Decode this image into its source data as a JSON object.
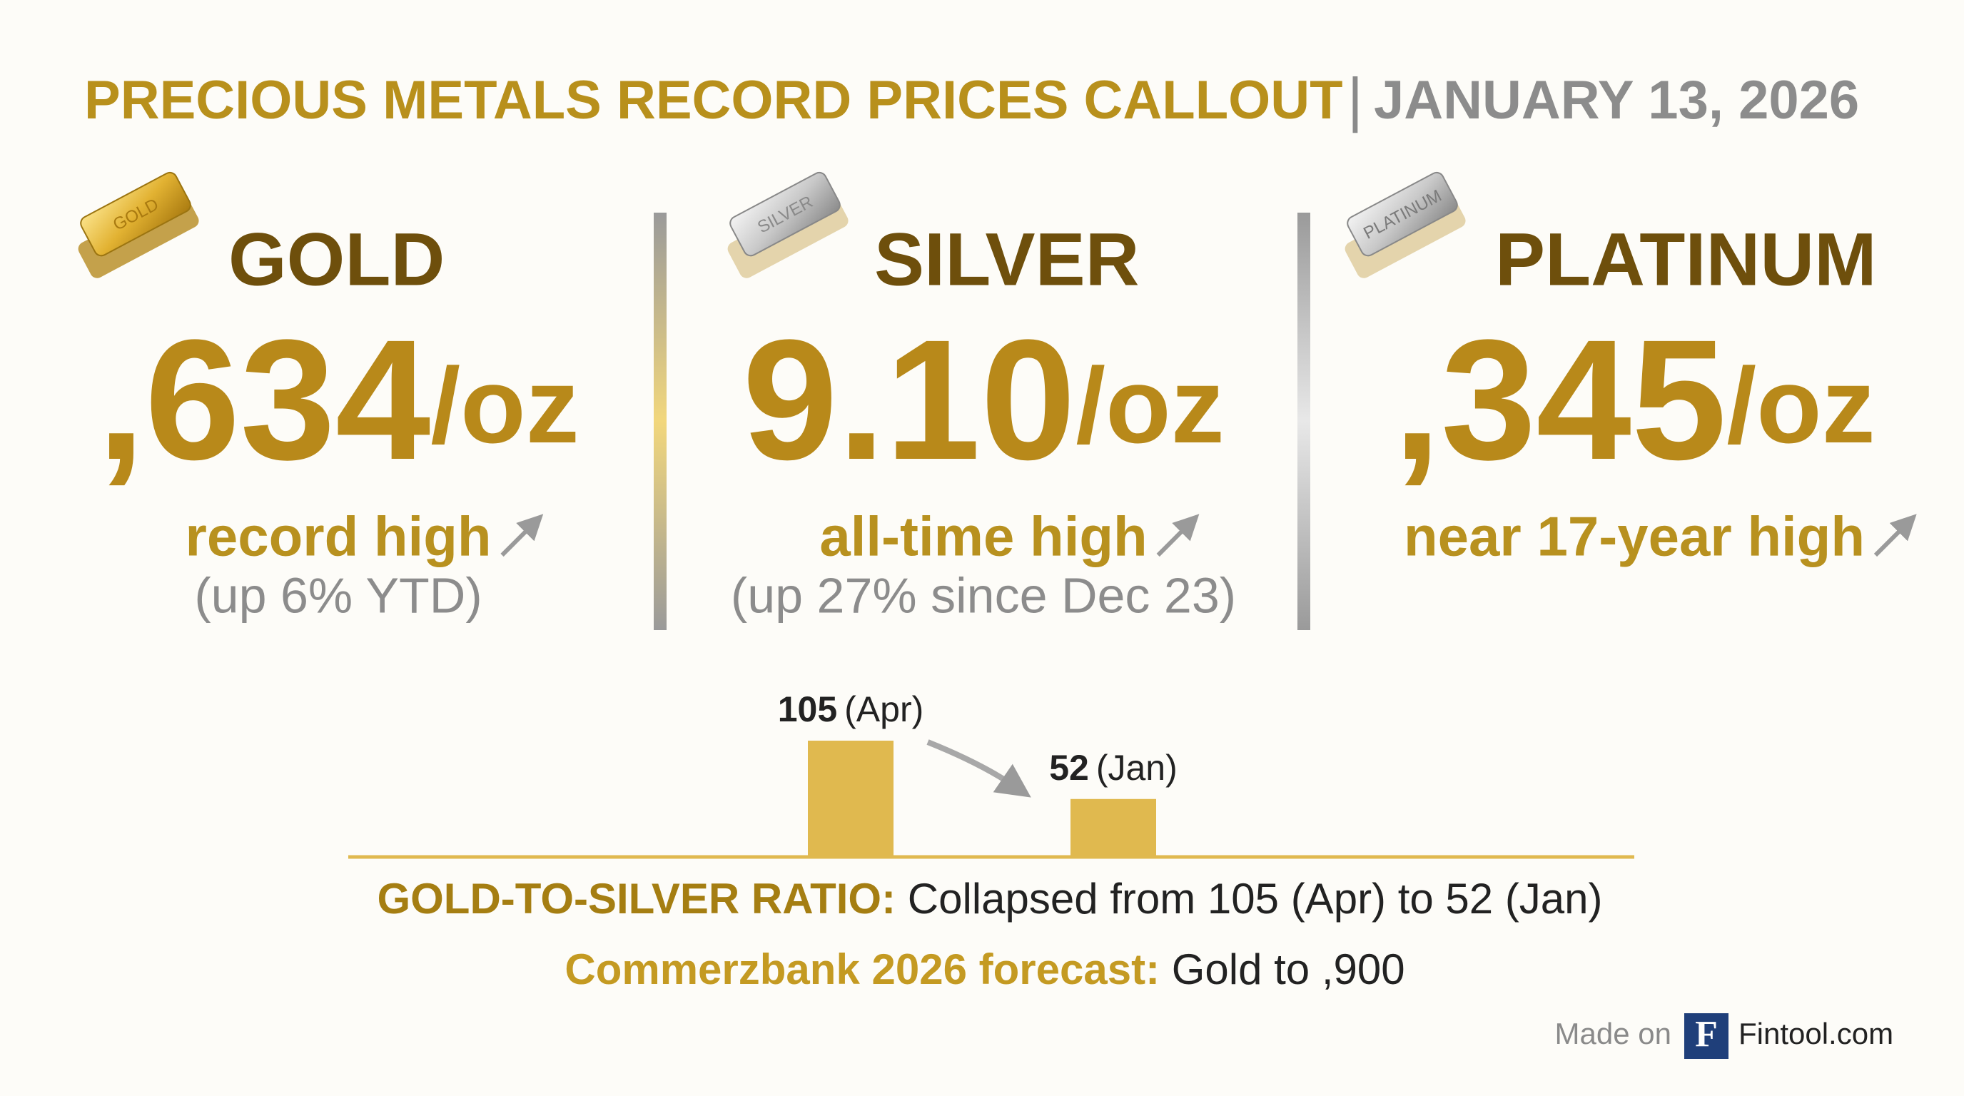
{
  "header": {
    "title": "PRECIOUS METALS RECORD PRICES CALLOUT",
    "separator": "|",
    "date": "JANUARY 13, 2026"
  },
  "metals": [
    {
      "icon_label": "GOLD",
      "name": "GOLD",
      "price": ",634",
      "unit": "/oz",
      "note": "record high",
      "detail": "(up 6% YTD)"
    },
    {
      "icon_label": "SILVER",
      "name": "SILVER",
      "price": "9.10",
      "unit": "/oz",
      "note": "all-time high",
      "detail": "(up 27% since Dec 23)"
    },
    {
      "icon_label": "PLATINUM",
      "name": "PLATINUM",
      "price": ",345",
      "unit": "/oz",
      "note": "near 17-year high"
    }
  ],
  "chart_data": {
    "type": "bar",
    "categories": [
      "(Apr)",
      "(Jan)"
    ],
    "values": [
      105,
      52
    ],
    "color": "#e0b94f"
  },
  "ratio": {
    "label": "GOLD-TO-SILVER RATIO:",
    "text": "Collapsed from 105 (Apr) to 52 (Jan)"
  },
  "forecast": {
    "label": "Commerzbank 2026 forecast:",
    "text": "Gold to ,900"
  },
  "footer": {
    "made_on": "Made on",
    "logo": "F",
    "brand": "Fintool.com"
  }
}
